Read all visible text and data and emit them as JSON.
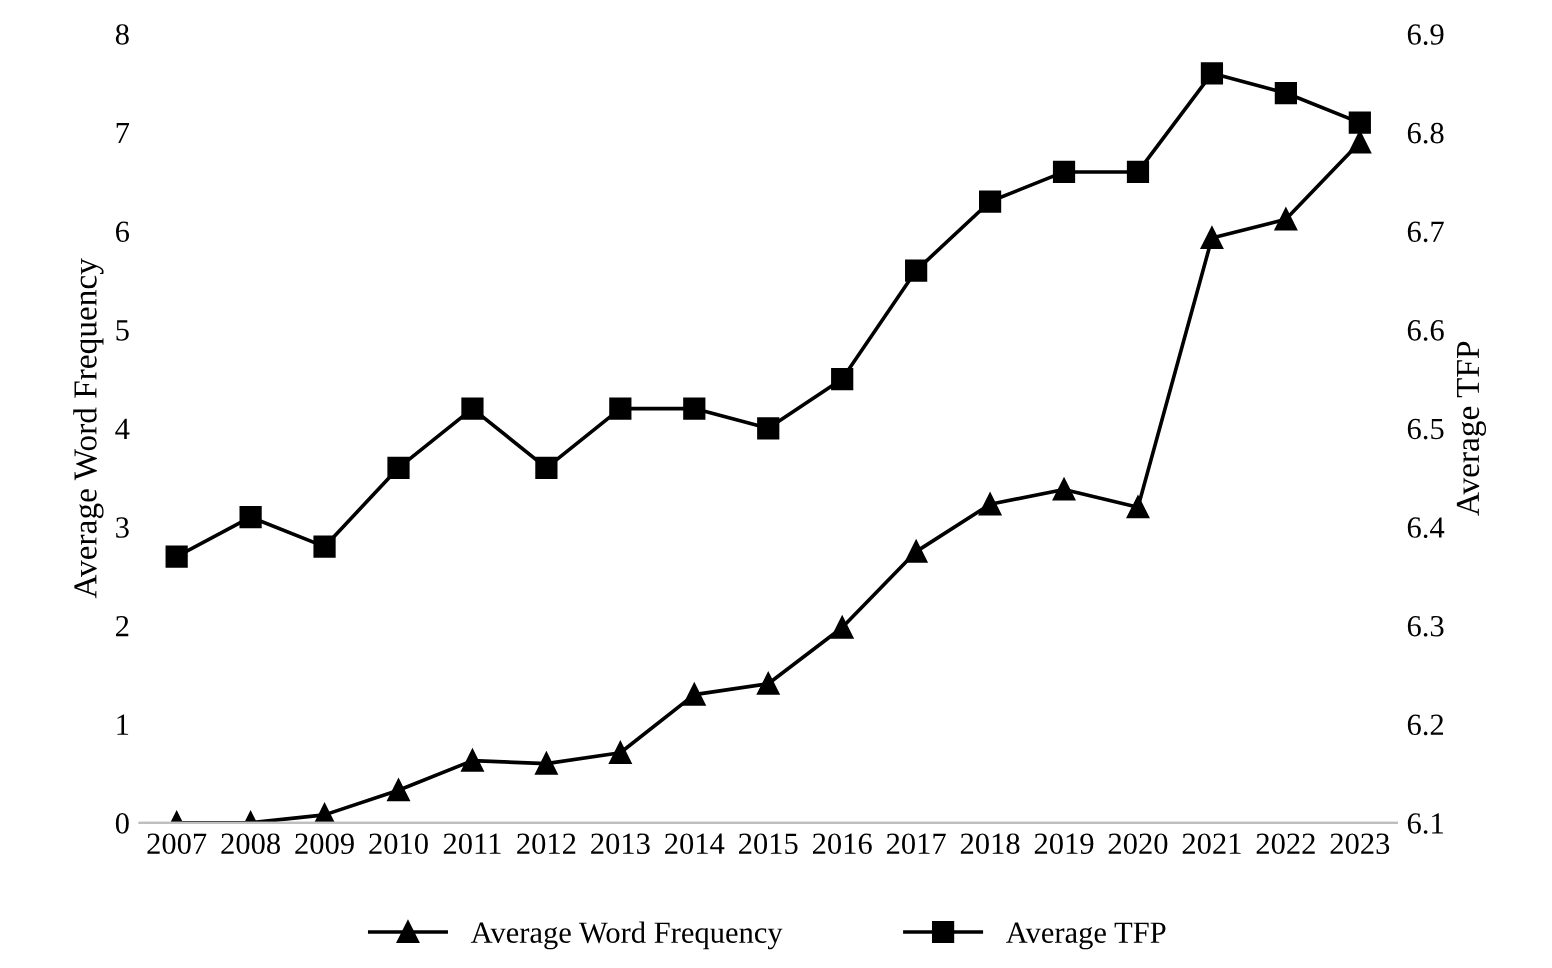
{
  "chart_data": {
    "type": "line",
    "ylabel": "Average Word Frequency",
    "y2label": "Average TFP",
    "categories": [
      "2007",
      "2008",
      "2009",
      "2010",
      "2011",
      "2012",
      "2013",
      "2014",
      "2015",
      "2016",
      "2017",
      "2018",
      "2019",
      "2020",
      "2021",
      "2022",
      "2023"
    ],
    "series": [
      {
        "name": "Average Word Frequency",
        "color": "#000000",
        "marker": "triangle",
        "values": [
          0,
          0,
          0.08,
          0.33,
          0.63,
          0.6,
          0.71,
          1.3,
          1.41,
          1.98,
          2.75,
          3.23,
          3.38,
          3.2,
          5.93,
          6.12,
          6.9
        ]
      },
      {
        "name": "Average TFP",
        "color": "#000000",
        "marker": "square",
        "axis": "y2",
        "values": [
          6.37,
          6.41,
          6.38,
          6.46,
          6.52,
          6.46,
          6.52,
          6.52,
          6.5,
          6.55,
          6.66,
          6.73,
          6.76,
          6.76,
          6.86,
          6.84,
          6.81
        ]
      }
    ],
    "ylim": [
      0,
      8
    ],
    "yticks": [
      0,
      1,
      2,
      3,
      4,
      5,
      6,
      7,
      8
    ],
    "y2lim": [
      6.1,
      6.9
    ],
    "y2ticks": [
      {
        "value": 6.1,
        "label": "6.1"
      },
      {
        "value": 6.2,
        "label": "6.2"
      },
      {
        "value": 6.3,
        "label": "6.3"
      },
      {
        "value": 6.4,
        "label": "6.4"
      },
      {
        "value": 6.5,
        "label": "6.5"
      },
      {
        "value": 6.6,
        "label": "6.6"
      },
      {
        "value": 6.7,
        "label": "6.7"
      },
      {
        "value": 6.8,
        "label": "6.8"
      },
      {
        "value": 6.9,
        "label": "6.9"
      }
    ],
    "grid": false,
    "legend": "bottom",
    "line_style": "solid"
  }
}
